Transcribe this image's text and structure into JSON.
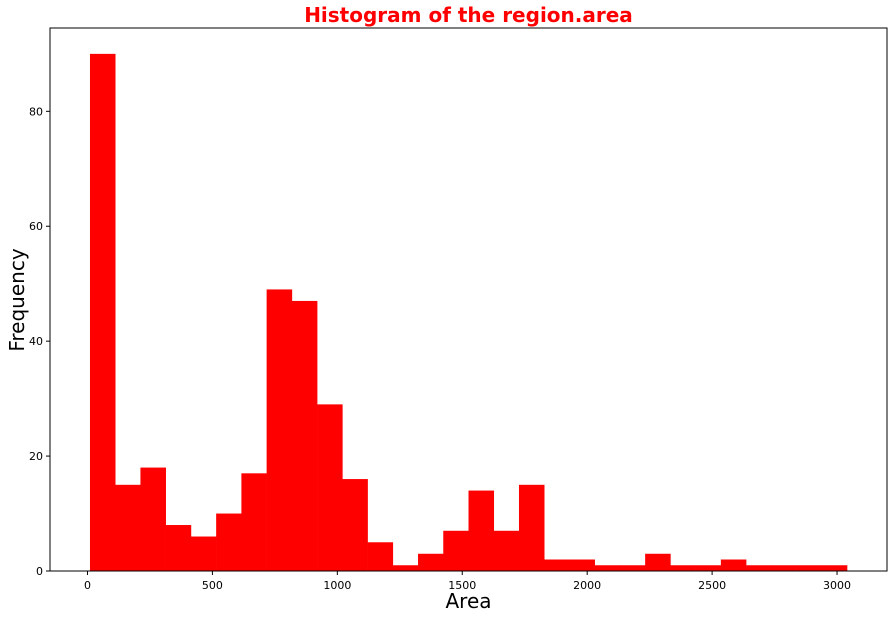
{
  "chart_data": {
    "type": "bar",
    "title": "Histogram of the region.area",
    "xlabel": "Area",
    "ylabel": "Frequency",
    "bar_color": "#ff0000",
    "title_color": "#ff0000",
    "xlim": [
      -150,
      3200
    ],
    "ylim": [
      0,
      94.5
    ],
    "xticks": [
      0,
      500,
      1000,
      1500,
      2000,
      2500,
      3000
    ],
    "yticks": [
      0,
      20,
      40,
      60,
      80
    ],
    "bin_start": 10,
    "bin_width": 101,
    "values": [
      90,
      15,
      18,
      8,
      6,
      10,
      17,
      49,
      47,
      29,
      16,
      5,
      1,
      3,
      7,
      14,
      7,
      15,
      2,
      2,
      1,
      1,
      3,
      1,
      1,
      2,
      1,
      1,
      1,
      1
    ],
    "grid": false,
    "legend": "none"
  }
}
